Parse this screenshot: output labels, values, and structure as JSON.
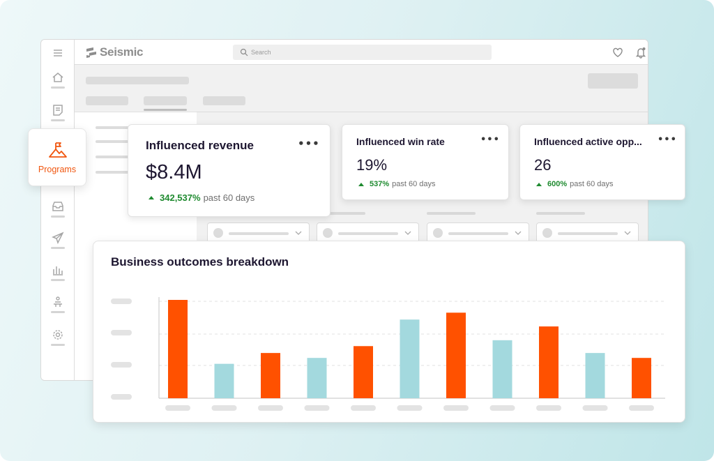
{
  "app": {
    "brand": "Seismic",
    "search": {
      "placeholder": "Search"
    }
  },
  "nav": {
    "items": [
      {
        "name": "home",
        "icon": "home-icon"
      },
      {
        "name": "notes",
        "icon": "note-icon"
      },
      {
        "name": "programs",
        "icon": "flag-mountain-icon",
        "label": "Programs",
        "active": true
      },
      {
        "name": "inbox",
        "icon": "inbox-icon"
      },
      {
        "name": "send",
        "icon": "send-icon"
      },
      {
        "name": "analytics",
        "icon": "bar-chart-icon"
      },
      {
        "name": "presenter",
        "icon": "presenter-icon"
      },
      {
        "name": "settings",
        "icon": "gear-icon"
      }
    ]
  },
  "header_icons": [
    "heart-icon",
    "bell-icon",
    "avatar"
  ],
  "kpis": [
    {
      "title": "Influenced revenue",
      "value": "$8.4M",
      "delta": "342,537%",
      "period": "past 60 days"
    },
    {
      "title": "Influenced win rate",
      "value": "19%",
      "delta": "537%",
      "period": "past 60 days"
    },
    {
      "title": "Influenced active opp...",
      "value": "26",
      "delta": "600%",
      "period": "past 60 days"
    }
  ],
  "colors": {
    "accent": "#f0560f",
    "bar_orange": "#ff5100",
    "bar_teal": "#a3d9de",
    "positive": "#1e8a2f"
  },
  "chart_data": {
    "type": "bar",
    "title": "Business outcomes breakdown",
    "xlabel": "",
    "ylabel": "",
    "grid": true,
    "ylim": [
      0,
      100
    ],
    "values": [
      100,
      35,
      46,
      41,
      53,
      80,
      87,
      59,
      73,
      46,
      41
    ],
    "bar_colors": [
      "orange",
      "teal",
      "orange",
      "teal",
      "orange",
      "teal",
      "orange",
      "teal",
      "orange",
      "teal",
      "orange"
    ]
  }
}
